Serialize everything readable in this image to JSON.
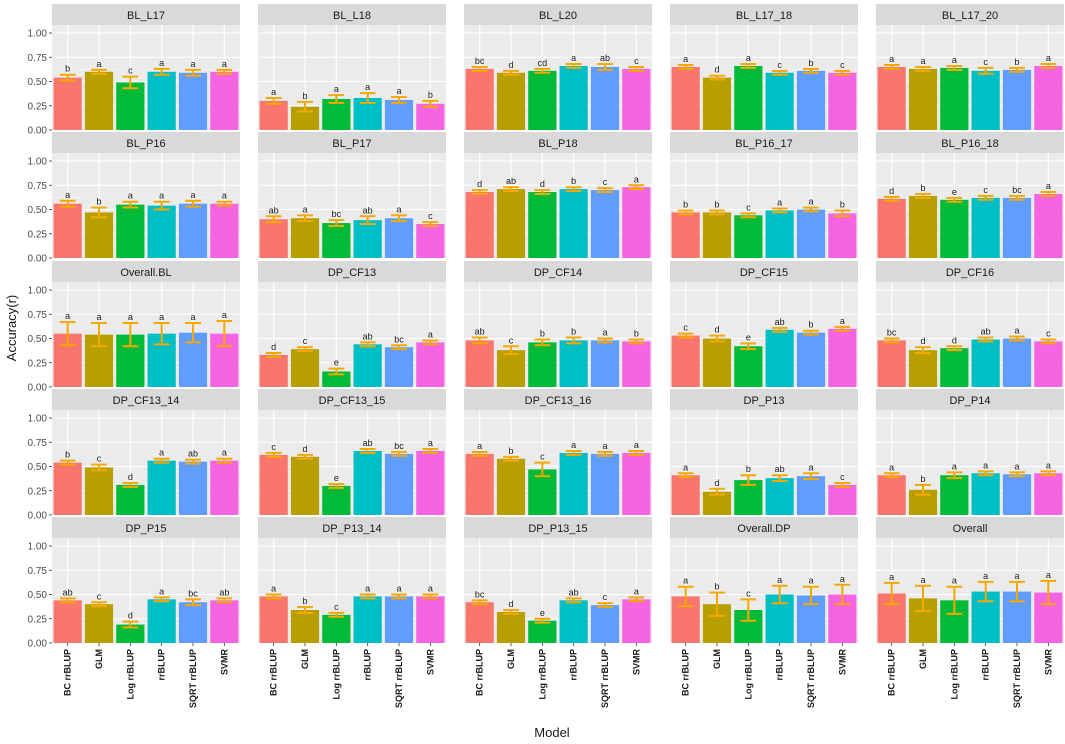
{
  "chart_data": {
    "type": "bar",
    "xlabel": "Model",
    "ylabel": "Accuracy(r)",
    "ylim": [
      0,
      1.0
    ],
    "yticks": [
      "0.00",
      "0.25",
      "0.50",
      "0.75",
      "1.00"
    ],
    "categories": [
      "BC rrBLUP",
      "GLM",
      "Log rrBLUP",
      "rrBLUP",
      "SQRT rrBLUP",
      "SVMR"
    ],
    "colors": [
      "#F8766D",
      "#B79F00",
      "#00BA38",
      "#00BFC4",
      "#619CFF",
      "#F564E3"
    ],
    "error_color": "#F5A800",
    "facets": [
      {
        "name": "BL_L17",
        "values": [
          0.54,
          0.6,
          0.49,
          0.6,
          0.59,
          0.6
        ],
        "errors": [
          0.03,
          0.02,
          0.06,
          0.03,
          0.03,
          0.02
        ],
        "letters": [
          "b",
          "a",
          "c",
          "a",
          "a",
          "a"
        ]
      },
      {
        "name": "BL_L18",
        "values": [
          0.3,
          0.24,
          0.32,
          0.33,
          0.31,
          0.27
        ],
        "errors": [
          0.03,
          0.05,
          0.04,
          0.05,
          0.03,
          0.03
        ],
        "letters": [
          "a",
          "b",
          "a",
          "a",
          "a",
          "b"
        ]
      },
      {
        "name": "BL_L20",
        "values": [
          0.63,
          0.59,
          0.61,
          0.66,
          0.65,
          0.63
        ],
        "errors": [
          0.02,
          0.02,
          0.02,
          0.02,
          0.03,
          0.02
        ],
        "letters": [
          "bc",
          "d",
          "cd",
          "a",
          "ab",
          "c"
        ]
      },
      {
        "name": "BL_L17_18",
        "values": [
          0.65,
          0.54,
          0.66,
          0.59,
          0.61,
          0.59
        ],
        "errors": [
          0.02,
          0.02,
          0.02,
          0.02,
          0.02,
          0.02
        ],
        "letters": [
          "a",
          "d",
          "a",
          "c",
          "b",
          "c"
        ]
      },
      {
        "name": "BL_L17_20",
        "values": [
          0.65,
          0.63,
          0.64,
          0.61,
          0.62,
          0.66
        ],
        "errors": [
          0.02,
          0.02,
          0.02,
          0.03,
          0.02,
          0.02
        ],
        "letters": [
          "a",
          "a",
          "a",
          "c",
          "b",
          "a"
        ]
      },
      {
        "name": "BL_P16",
        "values": [
          0.56,
          0.47,
          0.55,
          0.54,
          0.56,
          0.56
        ],
        "errors": [
          0.03,
          0.05,
          0.03,
          0.04,
          0.03,
          0.02
        ],
        "letters": [
          "a",
          "b",
          "a",
          "a",
          "a",
          "a"
        ]
      },
      {
        "name": "BL_P17",
        "values": [
          0.4,
          0.41,
          0.36,
          0.39,
          0.41,
          0.35
        ],
        "errors": [
          0.03,
          0.03,
          0.03,
          0.04,
          0.03,
          0.02
        ],
        "letters": [
          "ab",
          "a",
          "bc",
          "ab",
          "a",
          "c"
        ]
      },
      {
        "name": "BL_P18",
        "values": [
          0.68,
          0.71,
          0.68,
          0.71,
          0.7,
          0.73
        ],
        "errors": [
          0.02,
          0.02,
          0.02,
          0.02,
          0.02,
          0.02
        ],
        "letters": [
          "d",
          "ab",
          "d",
          "b",
          "c",
          "a"
        ]
      },
      {
        "name": "BL_P16_17",
        "values": [
          0.47,
          0.47,
          0.44,
          0.49,
          0.5,
          0.46
        ],
        "errors": [
          0.02,
          0.02,
          0.02,
          0.02,
          0.02,
          0.03
        ],
        "letters": [
          "b",
          "b",
          "c",
          "a",
          "a",
          "b"
        ]
      },
      {
        "name": "BL_P16_18",
        "values": [
          0.61,
          0.64,
          0.6,
          0.62,
          0.62,
          0.66
        ],
        "errors": [
          0.02,
          0.02,
          0.02,
          0.02,
          0.02,
          0.02
        ],
        "letters": [
          "d",
          "b",
          "e",
          "c",
          "bc",
          "a"
        ]
      },
      {
        "name": "Overall.BL",
        "values": [
          0.55,
          0.54,
          0.54,
          0.55,
          0.56,
          0.55
        ],
        "errors": [
          0.12,
          0.12,
          0.12,
          0.11,
          0.1,
          0.13
        ],
        "letters": [
          "a",
          "a",
          "a",
          "a",
          "a",
          "a"
        ]
      },
      {
        "name": "DP_CF13",
        "values": [
          0.33,
          0.39,
          0.16,
          0.44,
          0.41,
          0.46
        ],
        "errors": [
          0.02,
          0.02,
          0.03,
          0.02,
          0.02,
          0.02
        ],
        "letters": [
          "d",
          "c",
          "e",
          "ab",
          "bc",
          "a"
        ]
      },
      {
        "name": "DP_CF14",
        "values": [
          0.48,
          0.38,
          0.46,
          0.48,
          0.48,
          0.47
        ],
        "errors": [
          0.03,
          0.04,
          0.03,
          0.03,
          0.02,
          0.02
        ],
        "letters": [
          "ab",
          "c",
          "b",
          "b",
          "a",
          "b"
        ]
      },
      {
        "name": "DP_CF15",
        "values": [
          0.53,
          0.5,
          0.42,
          0.59,
          0.56,
          0.6
        ],
        "errors": [
          0.02,
          0.03,
          0.03,
          0.02,
          0.02,
          0.02
        ],
        "letters": [
          "c",
          "d",
          "e",
          "ab",
          "b",
          "a"
        ]
      },
      {
        "name": "DP_CF16",
        "values": [
          0.48,
          0.38,
          0.4,
          0.49,
          0.5,
          0.47
        ],
        "errors": [
          0.02,
          0.03,
          0.02,
          0.02,
          0.02,
          0.02
        ],
        "letters": [
          "bc",
          "d",
          "d",
          "ab",
          "a",
          "c"
        ]
      },
      {
        "name": "DP_CF13_14",
        "values": [
          0.54,
          0.49,
          0.31,
          0.56,
          0.55,
          0.56
        ],
        "errors": [
          0.02,
          0.03,
          0.02,
          0.02,
          0.02,
          0.02
        ],
        "letters": [
          "b",
          "c",
          "d",
          "a",
          "ab",
          "a"
        ]
      },
      {
        "name": "DP_CF13_15",
        "values": [
          0.62,
          0.6,
          0.3,
          0.66,
          0.63,
          0.66
        ],
        "errors": [
          0.02,
          0.02,
          0.02,
          0.02,
          0.02,
          0.02
        ],
        "letters": [
          "c",
          "d",
          "e",
          "ab",
          "bc",
          "a"
        ]
      },
      {
        "name": "DP_CF13_16",
        "values": [
          0.63,
          0.58,
          0.47,
          0.64,
          0.63,
          0.64
        ],
        "errors": [
          0.02,
          0.02,
          0.07,
          0.02,
          0.02,
          0.02
        ],
        "letters": [
          "a",
          "b",
          "c",
          "a",
          "a",
          "a"
        ]
      },
      {
        "name": "DP_P13",
        "values": [
          0.41,
          0.24,
          0.36,
          0.38,
          0.4,
          0.31
        ],
        "errors": [
          0.02,
          0.03,
          0.05,
          0.03,
          0.03,
          0.02
        ],
        "letters": [
          "a",
          "d",
          "b",
          "ab",
          "a",
          "c"
        ]
      },
      {
        "name": "DP_P14",
        "values": [
          0.41,
          0.26,
          0.41,
          0.43,
          0.42,
          0.43
        ],
        "errors": [
          0.02,
          0.05,
          0.03,
          0.02,
          0.02,
          0.02
        ],
        "letters": [
          "a",
          "b",
          "a",
          "a",
          "a",
          "a"
        ]
      },
      {
        "name": "DP_P15",
        "values": [
          0.44,
          0.4,
          0.19,
          0.45,
          0.42,
          0.44
        ],
        "errors": [
          0.02,
          0.02,
          0.03,
          0.02,
          0.03,
          0.02
        ],
        "letters": [
          "ab",
          "c",
          "d",
          "a",
          "bc",
          "ab"
        ]
      },
      {
        "name": "DP_P13_14",
        "values": [
          0.48,
          0.34,
          0.29,
          0.48,
          0.48,
          0.48
        ],
        "errors": [
          0.02,
          0.03,
          0.02,
          0.02,
          0.02,
          0.02
        ],
        "letters": [
          "a",
          "b",
          "c",
          "a",
          "a",
          "a"
        ]
      },
      {
        "name": "DP_P13_15",
        "values": [
          0.42,
          0.32,
          0.23,
          0.44,
          0.39,
          0.45
        ],
        "errors": [
          0.02,
          0.02,
          0.02,
          0.02,
          0.02,
          0.02
        ],
        "letters": [
          "bc",
          "d",
          "e",
          "ab",
          "c",
          "a"
        ]
      },
      {
        "name": "Overall.DP",
        "values": [
          0.48,
          0.4,
          0.34,
          0.5,
          0.49,
          0.5
        ],
        "errors": [
          0.1,
          0.12,
          0.11,
          0.09,
          0.09,
          0.1
        ],
        "letters": [
          "a",
          "b",
          "c",
          "a",
          "a",
          "a"
        ]
      },
      {
        "name": "Overall",
        "values": [
          0.51,
          0.46,
          0.44,
          0.53,
          0.53,
          0.52
        ],
        "errors": [
          0.11,
          0.13,
          0.14,
          0.1,
          0.1,
          0.12
        ],
        "letters": [
          "a",
          "a",
          "a",
          "a",
          "a",
          "a"
        ]
      }
    ]
  }
}
